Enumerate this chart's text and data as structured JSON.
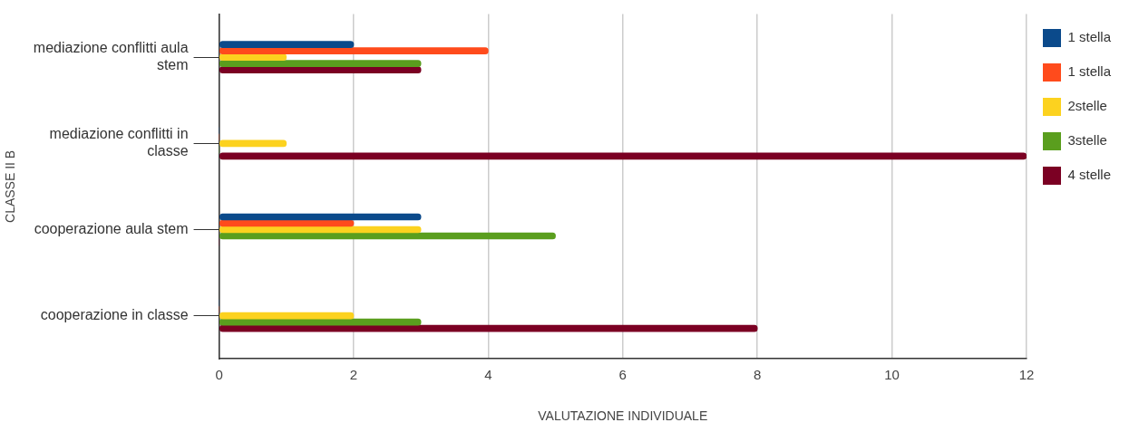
{
  "chart_data": {
    "type": "bar",
    "orientation": "horizontal",
    "xlabel": "VALUTAZIONE INDIVIDUALE",
    "ylabel": "CLASSE II B",
    "categories": [
      "mediazione conflitti aula stem",
      "mediazione conflitti in classe",
      "cooperazione aula stem",
      "cooperazione in classe"
    ],
    "series": [
      {
        "name": "1 stella",
        "color": "#0b4a8b",
        "values": [
          2,
          0,
          3,
          0
        ]
      },
      {
        "name": "1 stella",
        "color": "#ff4b1c",
        "values": [
          4,
          0,
          2,
          0
        ]
      },
      {
        "name": "2stelle",
        "color": "#fcd21f",
        "values": [
          1,
          1,
          3,
          2
        ]
      },
      {
        "name": "3stelle",
        "color": "#5a9e1e",
        "values": [
          3,
          0,
          5,
          3
        ]
      },
      {
        "name": "4 stelle",
        "color": "#7b0023",
        "values": [
          3,
          12,
          0,
          8
        ]
      }
    ],
    "xlim": [
      0,
      12
    ],
    "xticks": [
      0,
      2,
      4,
      6,
      8,
      10,
      12
    ],
    "grid": "x",
    "legend": "top right"
  }
}
